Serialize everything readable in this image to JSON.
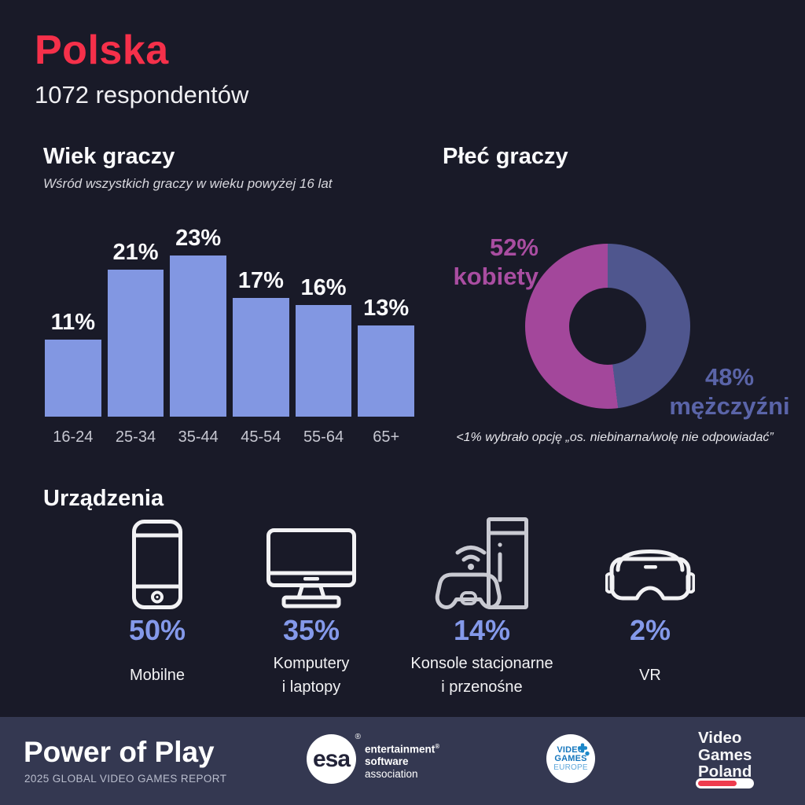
{
  "colors": {
    "background": "#191A28",
    "footer_band": "#343851",
    "accent_red": "#F5304A",
    "bar_fill": "#8297E2",
    "donut_female": "#A3479B",
    "donut_male": "#4F568E",
    "device_percent": "#8499EA"
  },
  "header": {
    "country": "Polska",
    "respondents": "1072 respondentów"
  },
  "age_section": {
    "title": "Wiek graczy",
    "subtitle": "Wśród wszystkich graczy w wieku powyżej 16 lat"
  },
  "gender_section": {
    "title": "Płeć graczy",
    "female_value": "52%",
    "female_label": "kobiety",
    "male_value": "48%",
    "male_label": "mężczyźni",
    "footnote": "<1% wybrało opcję „os. niebinarna/wolę nie odpowiadać”"
  },
  "devices_section": {
    "title": "Urządzenia",
    "items": [
      {
        "icon": "smartphone-icon",
        "value": "50%",
        "label_lines": [
          "Mobilne"
        ]
      },
      {
        "icon": "desktop-computer-icon",
        "value": "35%",
        "label_lines": [
          "Komputery",
          "i laptopy"
        ]
      },
      {
        "icon": "game-console-icon",
        "value": "14%",
        "label_lines": [
          "Konsole stacjonarne",
          "i przenośne"
        ]
      },
      {
        "icon": "vr-headset-icon",
        "value": "2%",
        "label_lines": [
          "VR"
        ]
      }
    ]
  },
  "footer": {
    "report_title": "Power of Play",
    "report_subtitle": "2025 GLOBAL VIDEO GAMES REPORT",
    "esa_logo": {
      "abbr": "esa",
      "reg": "®",
      "line1": "entertainment",
      "line2": "software",
      "line3": "association"
    },
    "vge_logo": {
      "line1": "VIDEO",
      "line2": "GAMES",
      "line3": "EUROPE"
    },
    "vgp_logo": {
      "line1": "Video",
      "line2": "Games",
      "line3": "Poland"
    }
  },
  "chart_data": [
    {
      "type": "bar",
      "title": "Wiek graczy",
      "subtitle": "Wśród wszystkich graczy w wieku powyżej 16 lat",
      "categories": [
        "16-24",
        "25-34",
        "35-44",
        "45-54",
        "55-64",
        "65+"
      ],
      "values": [
        11,
        21,
        23,
        17,
        16,
        13
      ],
      "unit": "%",
      "ylim": [
        0,
        23
      ],
      "bar_color": "#8297E2",
      "grid": false,
      "value_labels": "above bars"
    },
    {
      "type": "pie",
      "donut": true,
      "title": "Płeć graczy",
      "labels": [
        "kobiety",
        "mężczyźni"
      ],
      "values": [
        52,
        48
      ],
      "colors": [
        "#A3479B",
        "#4F568E"
      ],
      "start": "male segment clockwise from 12 o'clock",
      "footnote": "<1% wybrało opcję „os. niebinarna/wolę nie odpowiadać”"
    }
  ]
}
